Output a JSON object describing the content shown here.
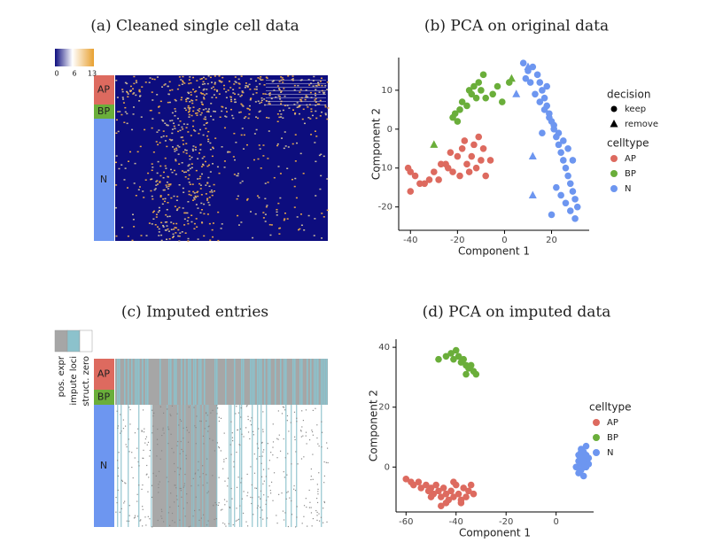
{
  "chart_data": [
    {
      "type": "heatmap",
      "title": "(a) Cleaned single cell data",
      "colorbar_ticks": [
        0,
        6,
        13
      ],
      "row_groups": [
        {
          "name": "AP",
          "color": "#dd6a5f"
        },
        {
          "name": "BP",
          "color": "#6aae3a"
        },
        {
          "name": "N",
          "color": "#6d96f0"
        }
      ]
    },
    {
      "type": "scatter",
      "title": "(b) PCA on original data",
      "xlabel": "Component 1",
      "ylabel": "Component 2",
      "xlim": [
        -45,
        36
      ],
      "ylim": [
        -26,
        18.4
      ],
      "xticks": [
        -40,
        -20,
        0,
        20
      ],
      "yticks": [
        -20,
        -10,
        0,
        10
      ],
      "shape_legend": {
        "title": "decision",
        "keep": "keep",
        "remove": "remove"
      },
      "color_legend_title": "celltype",
      "series": [
        {
          "name": "AP",
          "color": "#dd6a5f",
          "x": [
            -41,
            -40,
            -38,
            -36,
            -34,
            -32,
            -30,
            -28,
            -27,
            -25,
            -23,
            -22,
            -20,
            -19,
            -18,
            -16,
            -15,
            -14,
            -13,
            -12,
            -10,
            -9,
            -8,
            -6,
            -40,
            -11,
            -17,
            -24
          ],
          "y": [
            -10,
            -16,
            -12,
            -14,
            -14,
            -13,
            -11,
            -13,
            -9,
            -9,
            -6,
            -11,
            -7,
            -12,
            -5,
            -9,
            -11,
            -7,
            -4,
            -10,
            -8,
            -5,
            -12,
            -8,
            -11,
            -2,
            -3,
            -10
          ]
        },
        {
          "name": "BP",
          "color": "#6aae3a",
          "x": [
            -22,
            -21,
            -20,
            -19,
            -18,
            -16,
            -15,
            -14,
            -13,
            -12,
            -11,
            -10,
            -9,
            -8,
            -5,
            -3,
            -1,
            2
          ],
          "y": [
            3,
            4,
            2,
            5,
            7,
            6,
            10,
            9,
            11,
            8,
            12,
            10,
            14,
            8,
            9,
            11,
            7,
            12
          ],
          "removed": {
            "x": [
              -30,
              3
            ],
            "y": [
              -4,
              13
            ]
          }
        },
        {
          "name": "N",
          "color": "#6d96f0",
          "x": [
            8,
            10,
            12,
            14,
            15,
            16,
            17,
            18,
            19,
            20,
            21,
            22,
            23,
            24,
            25,
            26,
            27,
            28,
            29,
            30,
            9,
            11,
            13,
            15,
            17,
            19,
            21,
            23,
            25,
            27,
            29,
            31,
            20,
            22,
            24,
            26,
            28,
            30,
            18,
            16
          ],
          "y": [
            17,
            15,
            16,
            14,
            12,
            10,
            8,
            6,
            4,
            2,
            0,
            -2,
            -4,
            -6,
            -8,
            -10,
            -12,
            -14,
            -16,
            -18,
            13,
            12,
            9,
            7,
            5,
            3,
            1,
            -1,
            -3,
            -5,
            -8,
            -20,
            -22,
            -15,
            -17,
            -19,
            -21,
            -23,
            11,
            -1
          ],
          "removed": {
            "x": [
              5,
              12,
              12,
              10
            ],
            "y": [
              9,
              -7,
              -17,
              16
            ]
          }
        }
      ]
    },
    {
      "type": "heatmap",
      "title": "(c) Imputed entries",
      "state_legend": [
        "pos. expr",
        "impute loci",
        "struct. zero"
      ],
      "row_groups": [
        {
          "name": "AP",
          "color": "#dd6a5f"
        },
        {
          "name": "BP",
          "color": "#6aae3a"
        },
        {
          "name": "N",
          "color": "#6d96f0"
        }
      ]
    },
    {
      "type": "scatter",
      "title": "(d) PCA on imputed data",
      "xlabel": "Component 1",
      "ylabel": "Component 2",
      "xlim": [
        -64,
        15
      ],
      "ylim": [
        -15,
        42.7
      ],
      "xticks": [
        -60,
        -40,
        -20,
        0
      ],
      "yticks": [
        0,
        20,
        40
      ],
      "color_legend_title": "celltype",
      "series": [
        {
          "name": "AP",
          "color": "#dd6a5f",
          "x": [
            -60,
            -58,
            -57,
            -55,
            -54,
            -52,
            -51,
            -50,
            -49,
            -48,
            -47,
            -46,
            -45,
            -44,
            -43,
            -42,
            -41,
            -40,
            -39,
            -38,
            -37,
            -36,
            -35,
            -34,
            -33,
            -44,
            -41,
            -38,
            -50,
            -46
          ],
          "y": [
            -4,
            -5,
            -6,
            -5,
            -7,
            -6,
            -8,
            -7,
            -9,
            -6,
            -8,
            -10,
            -7,
            -9,
            -11,
            -8,
            -10,
            -6,
            -9,
            -12,
            -7,
            -10,
            -8,
            -6,
            -9,
            -12,
            -5,
            -11,
            -10,
            -13
          ]
        },
        {
          "name": "BP",
          "color": "#6aae3a",
          "x": [
            -47,
            -44,
            -42,
            -40,
            -39,
            -38,
            -37,
            -36,
            -35,
            -34,
            -33,
            -32,
            -41,
            -36
          ],
          "y": [
            36,
            37,
            38,
            39,
            37,
            35,
            36,
            34,
            33,
            34,
            32,
            31,
            36,
            31
          ]
        },
        {
          "name": "N",
          "color": "#6d96f0",
          "x": [
            8,
            9,
            9,
            10,
            10,
            10,
            11,
            11,
            11,
            12,
            12,
            12,
            13,
            13,
            9,
            10,
            11,
            12,
            11,
            10
          ],
          "y": [
            0,
            2,
            4,
            -1,
            3,
            6,
            1,
            5,
            -3,
            2,
            7,
            0,
            3,
            1,
            -2,
            1,
            0,
            4,
            2,
            5
          ]
        }
      ]
    }
  ]
}
